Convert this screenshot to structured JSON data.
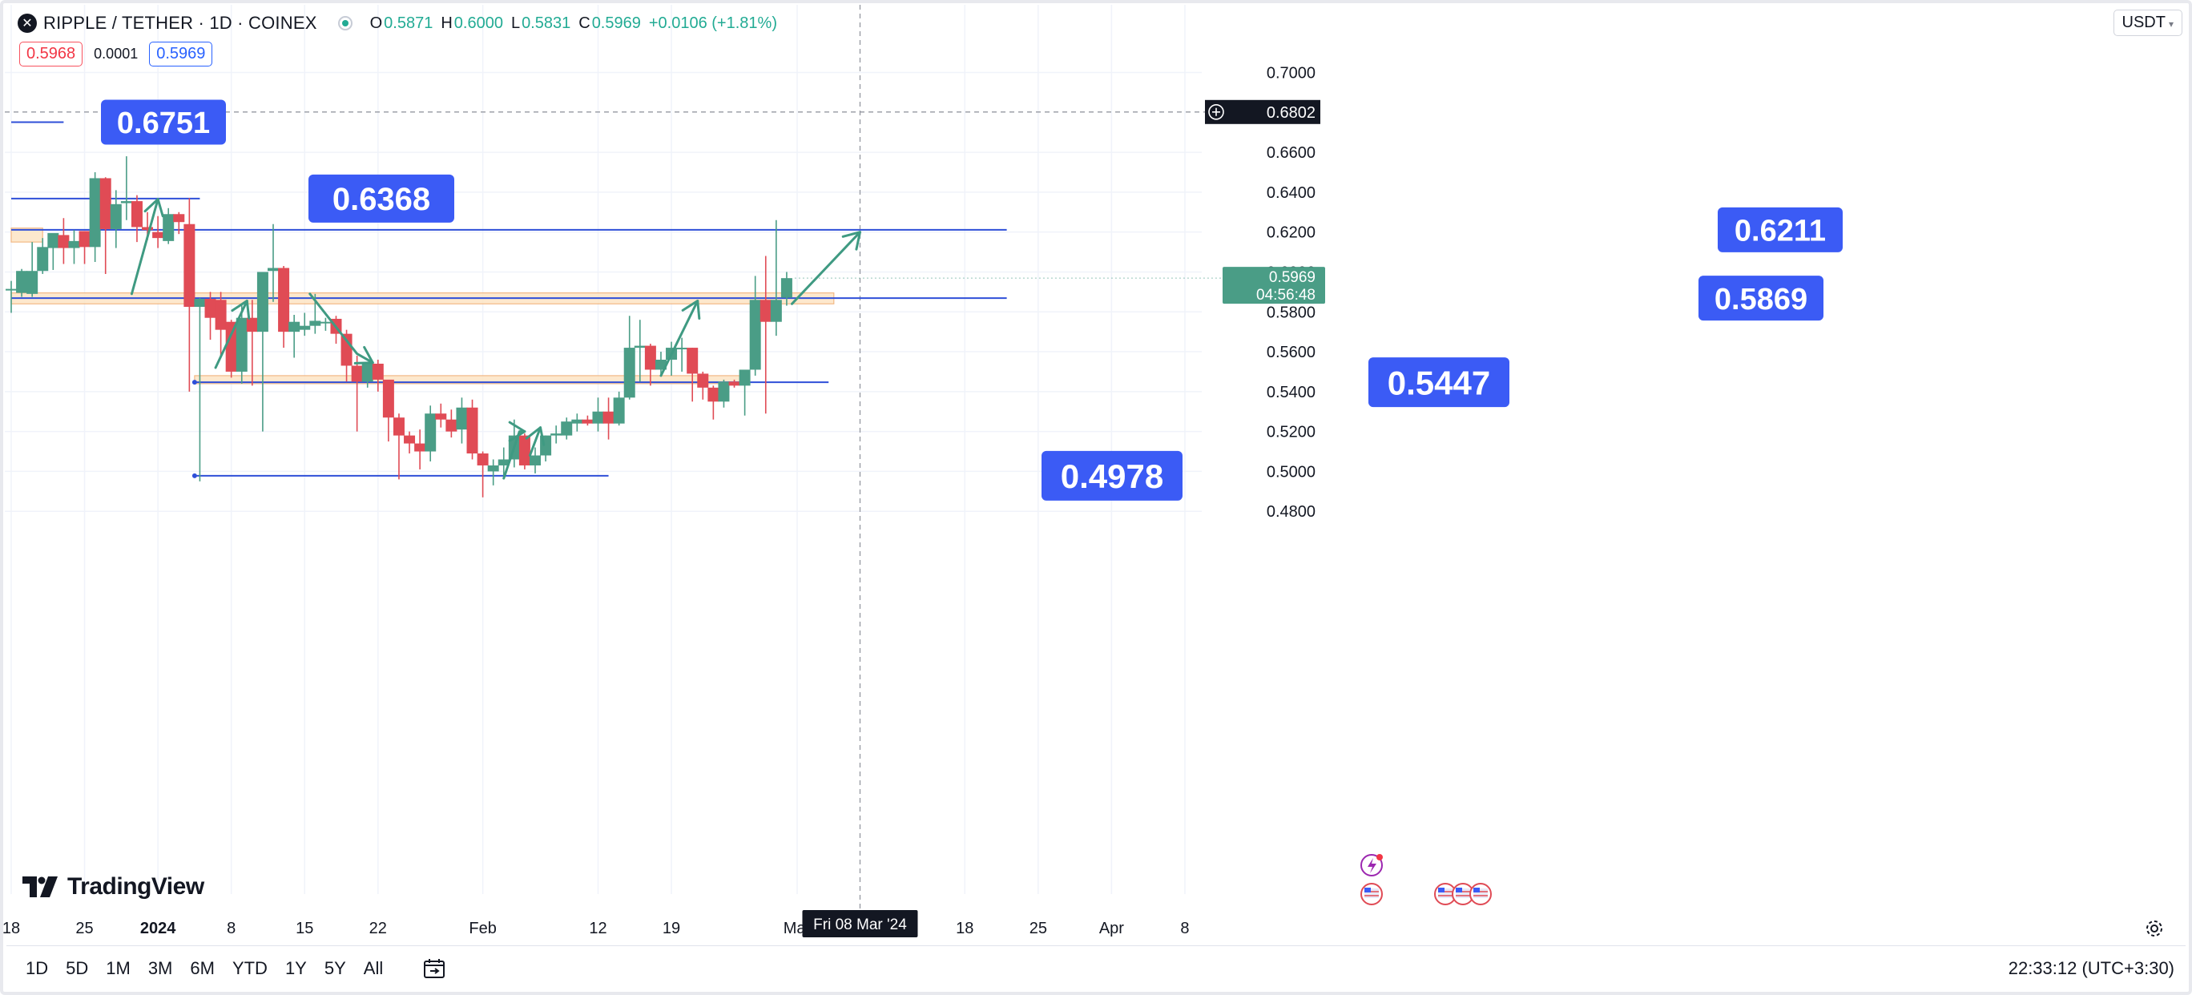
{
  "header": {
    "symbol": "RIPPLE / TETHER · 1D · COINEX",
    "o_label": "O",
    "o_value": "0.5871",
    "h_label": "H",
    "h_value": "0.6000",
    "l_label": "L",
    "l_value": "0.5831",
    "c_label": "C",
    "c_value": "0.5969",
    "change": "+0.0106 (+1.81%)",
    "sell_price": "0.5968",
    "spread": "0.0001",
    "buy_price": "0.5969",
    "currency": "USDT"
  },
  "branding": {
    "name": "TradingView"
  },
  "timeframes": [
    "1D",
    "5D",
    "1M",
    "3M",
    "6M",
    "YTD",
    "1Y",
    "5Y",
    "All"
  ],
  "clock": "22:33:12 (UTC+3:30)",
  "colors": {
    "up": "#4a9d86",
    "down": "#e04b55",
    "level_line": "#2f4fd8",
    "label_bg": "#3b5bf5",
    "zone": "#fde6c8",
    "arrow": "#3f9a82"
  },
  "chart_data": {
    "type": "candlestick",
    "y_ticks": [
      "0.4800",
      "0.5000",
      "0.5200",
      "0.5400",
      "0.5600",
      "0.5800",
      "0.6000",
      "0.6200",
      "0.6400",
      "0.6600",
      "0.7000"
    ],
    "ylim": [
      0.465,
      0.7085
    ],
    "x_ticks": [
      "18",
      "25",
      "2024",
      "8",
      "15",
      "22",
      "Feb",
      "12",
      "19",
      "Mar",
      "18",
      "25",
      "Apr",
      "8"
    ],
    "x_tick_days": [
      0,
      7,
      14,
      21,
      28,
      35,
      45,
      56,
      63,
      75,
      91,
      98,
      105,
      112
    ],
    "crosshair": {
      "price_label": "0.6802",
      "price": 0.6802,
      "date_label": "Fri 08 Mar '24",
      "day": 81
    },
    "last_price": {
      "price": 0.5969,
      "label": "0.5969",
      "countdown": "04:56:48"
    },
    "candles": [
      {
        "d": 0,
        "o": 0.5915,
        "h": 0.5955,
        "l": 0.5795,
        "c": 0.5915
      },
      {
        "d": 1,
        "o": 0.5895,
        "h": 0.6015,
        "l": 0.5875,
        "c": 0.6005
      },
      {
        "d": 2,
        "o": 0.589,
        "h": 0.615,
        "l": 0.5875,
        "c": 0.6005
      },
      {
        "d": 3,
        "o": 0.6005,
        "h": 0.617,
        "l": 0.599,
        "c": 0.6125
      },
      {
        "d": 4,
        "o": 0.612,
        "h": 0.6185,
        "l": 0.601,
        "c": 0.6195
      },
      {
        "d": 5,
        "o": 0.6185,
        "h": 0.627,
        "l": 0.604,
        "c": 0.612
      },
      {
        "d": 6,
        "o": 0.612,
        "h": 0.621,
        "l": 0.604,
        "c": 0.6155
      },
      {
        "d": 7,
        "o": 0.6205,
        "h": 0.6185,
        "l": 0.604,
        "c": 0.6125
      },
      {
        "d": 8,
        "o": 0.6125,
        "h": 0.65,
        "l": 0.605,
        "c": 0.647
      },
      {
        "d": 9,
        "o": 0.647,
        "h": 0.6475,
        "l": 0.599,
        "c": 0.6215
      },
      {
        "d": 10,
        "o": 0.6215,
        "h": 0.641,
        "l": 0.612,
        "c": 0.634
      },
      {
        "d": 11,
        "o": 0.6345,
        "h": 0.658,
        "l": 0.626,
        "c": 0.6355
      },
      {
        "d": 12,
        "o": 0.6355,
        "h": 0.6385,
        "l": 0.615,
        "c": 0.6225
      },
      {
        "d": 13,
        "o": 0.6225,
        "h": 0.63,
        "l": 0.616,
        "c": 0.621
      },
      {
        "d": 14,
        "o": 0.62,
        "h": 0.628,
        "l": 0.612,
        "c": 0.617
      },
      {
        "d": 15,
        "o": 0.6155,
        "h": 0.632,
        "l": 0.614,
        "c": 0.629
      },
      {
        "d": 16,
        "o": 0.629,
        "h": 0.63,
        "l": 0.619,
        "c": 0.625
      },
      {
        "d": 17,
        "o": 0.624,
        "h": 0.637,
        "l": 0.54,
        "c": 0.5825
      },
      {
        "d": 18,
        "o": 0.5825,
        "h": 0.587,
        "l": 0.495,
        "c": 0.5865
      },
      {
        "d": 19,
        "o": 0.5865,
        "h": 0.59,
        "l": 0.566,
        "c": 0.577
      },
      {
        "d": 20,
        "o": 0.586,
        "h": 0.59,
        "l": 0.558,
        "c": 0.571
      },
      {
        "d": 21,
        "o": 0.575,
        "h": 0.576,
        "l": 0.547,
        "c": 0.55
      },
      {
        "d": 22,
        "o": 0.55,
        "h": 0.584,
        "l": 0.544,
        "c": 0.577
      },
      {
        "d": 23,
        "o": 0.577,
        "h": 0.586,
        "l": 0.543,
        "c": 0.57
      },
      {
        "d": 24,
        "o": 0.57,
        "h": 0.6,
        "l": 0.52,
        "c": 0.6
      },
      {
        "d": 25,
        "o": 0.6005,
        "h": 0.624,
        "l": 0.585,
        "c": 0.602
      },
      {
        "d": 26,
        "o": 0.602,
        "h": 0.603,
        "l": 0.562,
        "c": 0.57
      },
      {
        "d": 27,
        "o": 0.57,
        "h": 0.5785,
        "l": 0.557,
        "c": 0.575
      },
      {
        "d": 28,
        "o": 0.571,
        "h": 0.5795,
        "l": 0.568,
        "c": 0.573
      },
      {
        "d": 29,
        "o": 0.573,
        "h": 0.589,
        "l": 0.569,
        "c": 0.5755
      },
      {
        "d": 30,
        "o": 0.575,
        "h": 0.577,
        "l": 0.5705,
        "c": 0.575
      },
      {
        "d": 31,
        "o": 0.5765,
        "h": 0.578,
        "l": 0.564,
        "c": 0.569
      },
      {
        "d": 32,
        "o": 0.569,
        "h": 0.571,
        "l": 0.545,
        "c": 0.553
      },
      {
        "d": 33,
        "o": 0.553,
        "h": 0.558,
        "l": 0.52,
        "c": 0.545
      },
      {
        "d": 34,
        "o": 0.545,
        "h": 0.552,
        "l": 0.542,
        "c": 0.554
      },
      {
        "d": 35,
        "o": 0.554,
        "h": 0.556,
        "l": 0.54,
        "c": 0.546
      },
      {
        "d": 36,
        "o": 0.546,
        "h": 0.545,
        "l": 0.515,
        "c": 0.527
      },
      {
        "d": 37,
        "o": 0.527,
        "h": 0.529,
        "l": 0.496,
        "c": 0.518
      },
      {
        "d": 38,
        "o": 0.518,
        "h": 0.52,
        "l": 0.509,
        "c": 0.514
      },
      {
        "d": 39,
        "o": 0.514,
        "h": 0.521,
        "l": 0.501,
        "c": 0.51
      },
      {
        "d": 40,
        "o": 0.51,
        "h": 0.533,
        "l": 0.505,
        "c": 0.529
      },
      {
        "d": 41,
        "o": 0.529,
        "h": 0.534,
        "l": 0.522,
        "c": 0.526
      },
      {
        "d": 42,
        "o": 0.526,
        "h": 0.531,
        "l": 0.517,
        "c": 0.52
      },
      {
        "d": 43,
        "o": 0.521,
        "h": 0.537,
        "l": 0.514,
        "c": 0.532
      },
      {
        "d": 44,
        "o": 0.532,
        "h": 0.536,
        "l": 0.506,
        "c": 0.509
      },
      {
        "d": 45,
        "o": 0.509,
        "h": 0.51,
        "l": 0.487,
        "c": 0.503
      },
      {
        "d": 46,
        "o": 0.5,
        "h": 0.506,
        "l": 0.493,
        "c": 0.503
      },
      {
        "d": 47,
        "o": 0.503,
        "h": 0.512,
        "l": 0.498,
        "c": 0.506
      },
      {
        "d": 48,
        "o": 0.506,
        "h": 0.526,
        "l": 0.502,
        "c": 0.518
      },
      {
        "d": 49,
        "o": 0.518,
        "h": 0.519,
        "l": 0.501,
        "c": 0.503
      },
      {
        "d": 50,
        "o": 0.503,
        "h": 0.512,
        "l": 0.499,
        "c": 0.508
      },
      {
        "d": 51,
        "o": 0.508,
        "h": 0.518,
        "l": 0.505,
        "c": 0.518
      },
      {
        "d": 52,
        "o": 0.518,
        "h": 0.523,
        "l": 0.514,
        "c": 0.519
      },
      {
        "d": 53,
        "o": 0.518,
        "h": 0.527,
        "l": 0.516,
        "c": 0.525
      },
      {
        "d": 54,
        "o": 0.524,
        "h": 0.529,
        "l": 0.52,
        "c": 0.526
      },
      {
        "d": 55,
        "o": 0.526,
        "h": 0.528,
        "l": 0.523,
        "c": 0.524
      },
      {
        "d": 56,
        "o": 0.524,
        "h": 0.537,
        "l": 0.52,
        "c": 0.53
      },
      {
        "d": 57,
        "o": 0.53,
        "h": 0.537,
        "l": 0.516,
        "c": 0.524
      },
      {
        "d": 58,
        "o": 0.524,
        "h": 0.54,
        "l": 0.523,
        "c": 0.537
      },
      {
        "d": 59,
        "o": 0.537,
        "h": 0.578,
        "l": 0.536,
        "c": 0.562
      },
      {
        "d": 60,
        "o": 0.562,
        "h": 0.576,
        "l": 0.545,
        "c": 0.563
      },
      {
        "d": 61,
        "o": 0.563,
        "h": 0.564,
        "l": 0.543,
        "c": 0.551
      },
      {
        "d": 62,
        "o": 0.551,
        "h": 0.56,
        "l": 0.548,
        "c": 0.556
      },
      {
        "d": 63,
        "o": 0.556,
        "h": 0.565,
        "l": 0.548,
        "c": 0.562
      },
      {
        "d": 64,
        "o": 0.562,
        "h": 0.567,
        "l": 0.55,
        "c": 0.562
      },
      {
        "d": 65,
        "o": 0.562,
        "h": 0.562,
        "l": 0.535,
        "c": 0.549
      },
      {
        "d": 66,
        "o": 0.549,
        "h": 0.55,
        "l": 0.536,
        "c": 0.542
      },
      {
        "d": 67,
        "o": 0.542,
        "h": 0.543,
        "l": 0.526,
        "c": 0.535
      },
      {
        "d": 68,
        "o": 0.535,
        "h": 0.546,
        "l": 0.532,
        "c": 0.545
      },
      {
        "d": 69,
        "o": 0.545,
        "h": 0.546,
        "l": 0.542,
        "c": 0.543
      },
      {
        "d": 70,
        "o": 0.543,
        "h": 0.55,
        "l": 0.528,
        "c": 0.551
      },
      {
        "d": 71,
        "o": 0.551,
        "h": 0.598,
        "l": 0.548,
        "c": 0.586
      },
      {
        "d": 72,
        "o": 0.586,
        "h": 0.608,
        "l": 0.529,
        "c": 0.575
      },
      {
        "d": 73,
        "o": 0.575,
        "h": 0.626,
        "l": 0.568,
        "c": 0.586
      },
      {
        "d": 74,
        "o": 0.5871,
        "h": 0.6,
        "l": 0.5831,
        "c": 0.5969
      }
    ],
    "levels": [
      {
        "price": 0.6751,
        "label": "0.6751",
        "from": 0,
        "to": 5
      },
      {
        "price": 0.6368,
        "label": "0.6368",
        "from": 0,
        "to": 18
      },
      {
        "price": 0.6211,
        "label": "0.6211",
        "from": 0,
        "to": 95
      },
      {
        "price": 0.5869,
        "label": "0.5869",
        "from": 0,
        "to": 95
      },
      {
        "price": 0.5447,
        "label": "0.5447",
        "from": 17.5,
        "to": 78
      },
      {
        "price": 0.4978,
        "label": "0.4978",
        "from": 17.5,
        "to": 57
      }
    ],
    "zones": [
      {
        "top": 0.622,
        "bottom": 0.615,
        "from": 0,
        "to": 3
      },
      {
        "top": 0.5895,
        "bottom": 0.584,
        "from": 0,
        "to": 78.5
      },
      {
        "top": 0.548,
        "bottom": 0.544,
        "from": 17.5,
        "to": 70
      }
    ],
    "arrows": [
      {
        "from": [
          11.5,
          0.589
        ],
        "to": [
          14,
          0.6365
        ]
      },
      {
        "from": [
          19.5,
          0.552
        ],
        "to": [
          22.5,
          0.5855
        ]
      },
      {
        "from": [
          28.5,
          0.589
        ],
        "to": [
          34.5,
          0.5545
        ],
        "mid": [
          33,
          0.559
        ]
      },
      {
        "from": [
          47,
          0.4965
        ],
        "to": [
          49,
          0.52
        ],
        "mid": [
          48.5,
          0.52
        ]
      },
      {
        "from": [
          49.5,
          0.508
        ],
        "to": [
          50.5,
          0.522
        ]
      },
      {
        "from": [
          62,
          0.548
        ],
        "to": [
          65.5,
          0.5855
        ]
      },
      {
        "from": [
          74.5,
          0.584
        ],
        "to": [
          81,
          0.62
        ]
      }
    ],
    "grid": true
  }
}
